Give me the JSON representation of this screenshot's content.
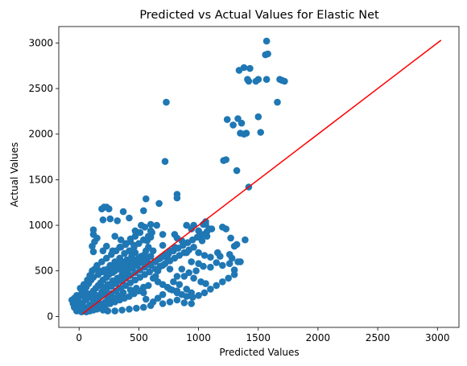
{
  "chart_data": {
    "type": "scatter",
    "title": "Predicted vs Actual Values for Elastic Net",
    "xlabel": "Predicted Values",
    "ylabel": "Actual Values",
    "xlim": [
      -170,
      3180
    ],
    "ylim": [
      -120,
      3180
    ],
    "x_ticks": [
      0,
      500,
      1000,
      1500,
      2000,
      2500,
      3000
    ],
    "y_ticks": [
      0,
      500,
      1000,
      1500,
      2000,
      2500,
      3000
    ],
    "grid": false,
    "legend": "none",
    "marker_color": "#1f77b4",
    "line_color": "#ff0000",
    "reference_line": {
      "x": [
        30,
        3030
      ],
      "y": [
        30,
        3030
      ]
    },
    "points": [
      [
        1570,
        3020
      ],
      [
        1560,
        2870
      ],
      [
        1580,
        2880
      ],
      [
        1340,
        2700
      ],
      [
        1380,
        2730
      ],
      [
        1430,
        2720
      ],
      [
        1410,
        2600
      ],
      [
        1420,
        2580
      ],
      [
        1480,
        2580
      ],
      [
        1500,
        2600
      ],
      [
        1570,
        2600
      ],
      [
        1680,
        2600
      ],
      [
        1700,
        2590
      ],
      [
        1720,
        2580
      ],
      [
        1660,
        2350
      ],
      [
        730,
        2350
      ],
      [
        1240,
        2160
      ],
      [
        1330,
        2170
      ],
      [
        1290,
        2100
      ],
      [
        1360,
        2120
      ],
      [
        1350,
        2010
      ],
      [
        1380,
        2000
      ],
      [
        1400,
        2010
      ],
      [
        1500,
        2190
      ],
      [
        1520,
        2020
      ],
      [
        1210,
        1710
      ],
      [
        1230,
        1720
      ],
      [
        720,
        1700
      ],
      [
        1320,
        1600
      ],
      [
        1420,
        1420
      ],
      [
        820,
        1340
      ],
      [
        820,
        1300
      ],
      [
        560,
        1290
      ],
      [
        210,
        1200
      ],
      [
        230,
        1200
      ],
      [
        190,
        1180
      ],
      [
        250,
        1180
      ],
      [
        260,
        1070
      ],
      [
        200,
        1060
      ],
      [
        370,
        1150
      ],
      [
        420,
        1080
      ],
      [
        120,
        950
      ],
      [
        470,
        940
      ],
      [
        670,
        1240
      ],
      [
        540,
        1160
      ],
      [
        320,
        1050
      ],
      [
        520,
        1000
      ],
      [
        600,
        1010
      ],
      [
        650,
        1000
      ],
      [
        550,
        980
      ],
      [
        600,
        940
      ],
      [
        700,
        900
      ],
      [
        900,
        1000
      ],
      [
        960,
        1000
      ],
      [
        1040,
        1010
      ],
      [
        1060,
        1010
      ],
      [
        1200,
        980
      ],
      [
        940,
        960
      ],
      [
        1000,
        940
      ],
      [
        1090,
        960
      ],
      [
        1060,
        1040
      ],
      [
        1070,
        880
      ],
      [
        1000,
        870
      ],
      [
        1030,
        830
      ],
      [
        1230,
        960
      ],
      [
        1270,
        860
      ],
      [
        120,
        900
      ],
      [
        130,
        820
      ],
      [
        150,
        860
      ],
      [
        300,
        880
      ],
      [
        350,
        840
      ],
      [
        430,
        820
      ],
      [
        460,
        780
      ],
      [
        390,
        790
      ],
      [
        340,
        760
      ],
      [
        280,
        720
      ],
      [
        230,
        770
      ],
      [
        200,
        720
      ],
      [
        120,
        710
      ],
      [
        110,
        770
      ],
      [
        570,
        830
      ],
      [
        600,
        870
      ],
      [
        620,
        720
      ],
      [
        700,
        780
      ],
      [
        740,
        640
      ],
      [
        800,
        900
      ],
      [
        820,
        860
      ],
      [
        860,
        830
      ],
      [
        900,
        700
      ],
      [
        940,
        600
      ],
      [
        1000,
        700
      ],
      [
        1050,
        670
      ],
      [
        1100,
        650
      ],
      [
        1160,
        700
      ],
      [
        1180,
        660
      ],
      [
        1150,
        590
      ],
      [
        1200,
        560
      ],
      [
        1260,
        580
      ],
      [
        1300,
        770
      ],
      [
        1320,
        790
      ],
      [
        1330,
        600
      ],
      [
        1300,
        510
      ],
      [
        1390,
        840
      ],
      [
        1260,
        680
      ],
      [
        1280,
        640
      ],
      [
        1350,
        600
      ],
      [
        1100,
        540
      ],
      [
        1040,
        550
      ],
      [
        1000,
        580
      ],
      [
        980,
        500
      ],
      [
        920,
        480
      ],
      [
        860,
        520
      ],
      [
        880,
        440
      ],
      [
        960,
        420
      ],
      [
        1020,
        380
      ],
      [
        1060,
        360
      ],
      [
        760,
        520
      ],
      [
        700,
        560
      ],
      [
        660,
        500
      ],
      [
        640,
        440
      ],
      [
        820,
        440
      ],
      [
        790,
        380
      ],
      [
        840,
        350
      ],
      [
        900,
        300
      ],
      [
        940,
        260
      ],
      [
        820,
        280
      ],
      [
        760,
        300
      ],
      [
        700,
        240
      ],
      [
        660,
        200
      ],
      [
        620,
        160
      ],
      [
        560,
        190
      ],
      [
        540,
        260
      ],
      [
        480,
        310
      ],
      [
        430,
        290
      ],
      [
        370,
        260
      ],
      [
        330,
        230
      ],
      [
        300,
        200
      ],
      [
        260,
        180
      ],
      [
        220,
        160
      ],
      [
        180,
        140
      ],
      [
        140,
        120
      ],
      [
        110,
        100
      ],
      [
        80,
        80
      ],
      [
        50,
        60
      ],
      [
        20,
        50
      ],
      [
        -20,
        60
      ],
      [
        -40,
        100
      ],
      [
        -50,
        140
      ],
      [
        -60,
        180
      ],
      [
        -40,
        200
      ],
      [
        -20,
        160
      ],
      [
        0,
        130
      ],
      [
        30,
        150
      ],
      [
        60,
        180
      ],
      [
        80,
        220
      ],
      [
        100,
        250
      ],
      [
        120,
        280
      ],
      [
        140,
        310
      ],
      [
        160,
        340
      ],
      [
        180,
        370
      ],
      [
        200,
        400
      ],
      [
        230,
        430
      ],
      [
        250,
        460
      ],
      [
        280,
        480
      ],
      [
        300,
        500
      ],
      [
        330,
        520
      ],
      [
        360,
        540
      ],
      [
        390,
        560
      ],
      [
        410,
        580
      ],
      [
        440,
        600
      ],
      [
        470,
        620
      ],
      [
        500,
        640
      ],
      [
        520,
        660
      ],
      [
        550,
        680
      ],
      [
        560,
        720
      ],
      [
        580,
        760
      ],
      [
        470,
        700
      ],
      [
        440,
        660
      ],
      [
        400,
        620
      ],
      [
        360,
        600
      ],
      [
        320,
        570
      ],
      [
        280,
        540
      ],
      [
        240,
        520
      ],
      [
        200,
        490
      ],
      [
        160,
        460
      ],
      [
        120,
        430
      ],
      [
        100,
        400
      ],
      [
        80,
        360
      ],
      [
        60,
        320
      ],
      [
        40,
        290
      ],
      [
        20,
        250
      ],
      [
        0,
        220
      ],
      [
        -20,
        230
      ],
      [
        10,
        310
      ],
      [
        40,
        350
      ],
      [
        70,
        400
      ],
      [
        90,
        450
      ],
      [
        110,
        500
      ],
      [
        130,
        520
      ],
      [
        170,
        500
      ],
      [
        210,
        510
      ],
      [
        260,
        560
      ],
      [
        300,
        600
      ],
      [
        340,
        640
      ],
      [
        380,
        690
      ],
      [
        420,
        720
      ],
      [
        460,
        760
      ],
      [
        500,
        800
      ],
      [
        540,
        840
      ],
      [
        580,
        880
      ],
      [
        610,
        920
      ],
      [
        150,
        560
      ],
      [
        190,
        600
      ],
      [
        230,
        640
      ],
      [
        270,
        680
      ],
      [
        310,
        720
      ],
      [
        350,
        760
      ],
      [
        390,
        800
      ],
      [
        430,
        850
      ],
      [
        470,
        880
      ],
      [
        510,
        920
      ],
      [
        600,
        560
      ],
      [
        640,
        600
      ],
      [
        680,
        640
      ],
      [
        720,
        680
      ],
      [
        760,
        720
      ],
      [
        800,
        760
      ],
      [
        620,
        420
      ],
      [
        660,
        380
      ],
      [
        700,
        350
      ],
      [
        740,
        320
      ],
      [
        780,
        290
      ],
      [
        820,
        260
      ],
      [
        860,
        240
      ],
      [
        900,
        220
      ],
      [
        950,
        210
      ],
      [
        1000,
        230
      ],
      [
        1050,
        260
      ],
      [
        1100,
        300
      ],
      [
        1150,
        340
      ],
      [
        1200,
        380
      ],
      [
        1250,
        420
      ],
      [
        1300,
        460
      ],
      [
        580,
        340
      ],
      [
        540,
        320
      ],
      [
        500,
        280
      ],
      [
        460,
        250
      ],
      [
        420,
        220
      ],
      [
        380,
        200
      ],
      [
        340,
        180
      ],
      [
        300,
        160
      ],
      [
        260,
        140
      ],
      [
        220,
        120
      ],
      [
        180,
        100
      ],
      [
        150,
        80
      ],
      [
        120,
        70
      ],
      [
        90,
        60
      ],
      [
        60,
        50
      ],
      [
        700,
        140
      ],
      [
        760,
        160
      ],
      [
        820,
        180
      ],
      [
        880,
        150
      ],
      [
        940,
        140
      ],
      [
        600,
        120
      ],
      [
        540,
        100
      ],
      [
        480,
        90
      ],
      [
        420,
        80
      ],
      [
        360,
        70
      ],
      [
        300,
        60
      ],
      [
        240,
        60
      ],
      [
        200,
        70
      ],
      [
        160,
        90
      ],
      [
        100,
        110
      ],
      [
        50,
        90
      ],
      [
        10,
        80
      ],
      [
        -30,
        120
      ],
      [
        -10,
        180
      ],
      [
        40,
        220
      ],
      [
        70,
        250
      ],
      [
        110,
        200
      ],
      [
        150,
        230
      ],
      [
        190,
        270
      ],
      [
        230,
        300
      ],
      [
        270,
        330
      ],
      [
        310,
        360
      ],
      [
        350,
        390
      ],
      [
        390,
        420
      ],
      [
        430,
        450
      ],
      [
        470,
        480
      ],
      [
        510,
        510
      ],
      [
        550,
        540
      ],
      [
        590,
        570
      ],
      [
        630,
        600
      ],
      [
        670,
        630
      ],
      [
        710,
        660
      ],
      [
        750,
        690
      ],
      [
        790,
        720
      ],
      [
        830,
        750
      ],
      [
        870,
        780
      ],
      [
        910,
        810
      ],
      [
        950,
        840
      ],
      [
        990,
        870
      ],
      [
        1030,
        900
      ],
      [
        1070,
        930
      ],
      [
        1110,
        960
      ],
      [
        230,
        230
      ],
      [
        270,
        250
      ],
      [
        310,
        280
      ],
      [
        350,
        310
      ],
      [
        390,
        340
      ],
      [
        430,
        370
      ],
      [
        470,
        400
      ],
      [
        510,
        430
      ],
      [
        550,
        460
      ],
      [
        590,
        490
      ],
      [
        640,
        520
      ],
      [
        680,
        550
      ],
      [
        720,
        580
      ],
      [
        760,
        610
      ],
      [
        800,
        640
      ],
      [
        840,
        670
      ],
      [
        880,
        700
      ],
      [
        920,
        730
      ],
      [
        960,
        760
      ],
      [
        200,
        320
      ],
      [
        240,
        350
      ],
      [
        280,
        390
      ],
      [
        320,
        420
      ],
      [
        360,
        460
      ],
      [
        400,
        490
      ],
      [
        440,
        530
      ],
      [
        480,
        560
      ],
      [
        520,
        600
      ],
      [
        560,
        630
      ],
      [
        600,
        660
      ],
      [
        180,
        230
      ],
      [
        160,
        200
      ],
      [
        140,
        170
      ],
      [
        120,
        150
      ],
      [
        100,
        130
      ],
      [
        80,
        110
      ],
      [
        60,
        90
      ],
      [
        40,
        70
      ],
      [
        20,
        100
      ],
      [
        0,
        90
      ],
      [
        -30,
        90
      ],
      [
        330,
        420
      ],
      [
        370,
        470
      ],
      [
        410,
        510
      ],
      [
        450,
        540
      ],
      [
        490,
        570
      ],
      [
        530,
        590
      ],
      [
        570,
        610
      ]
    ]
  }
}
